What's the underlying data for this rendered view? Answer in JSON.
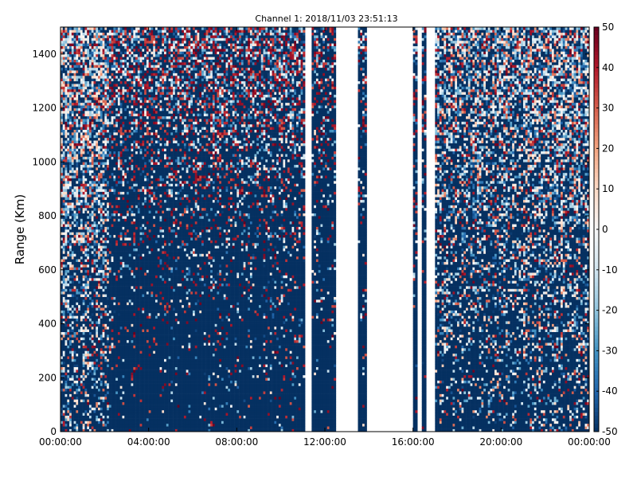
{
  "chart_data": {
    "type": "heatmap",
    "title": "Channel 1: 2018/11/03 23:51:13",
    "xlabel": "",
    "ylabel": "Range (Km)",
    "x_ticks": [
      "00:00:00",
      "04:00:00",
      "08:00:00",
      "12:00:00",
      "16:00:00",
      "20:00:00",
      "00:00:00"
    ],
    "xlim_hours": [
      0,
      24
    ],
    "y_ticks": [
      0,
      200,
      400,
      600,
      800,
      1000,
      1200,
      1400
    ],
    "ylim": [
      0,
      1500
    ],
    "colorbar": {
      "ticks": [
        50,
        40,
        30,
        20,
        10,
        0,
        -10,
        -20,
        -30,
        -40,
        -50
      ],
      "range": [
        -50,
        50
      ],
      "colormap": "RdBu_r",
      "colors_low_to_high": [
        "#053061",
        "#2166ac",
        "#4393c3",
        "#92c5de",
        "#d1e5f0",
        "#f7f7f7",
        "#fddbc7",
        "#f4a582",
        "#d6604d",
        "#b2182b",
        "#67001f"
      ]
    },
    "data_gaps_hours": [
      [
        11.1,
        11.4
      ],
      [
        12.5,
        13.5
      ],
      [
        13.9,
        16.0
      ],
      [
        16.2,
        16.4
      ],
      [
        16.6,
        17.0
      ]
    ],
    "grid": false,
    "legend": "none"
  }
}
